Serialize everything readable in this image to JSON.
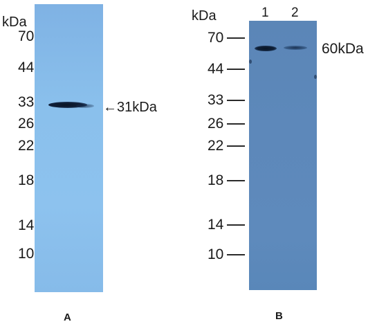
{
  "panel_a": {
    "unit_label": "kDa",
    "markers": [
      "70",
      "44",
      "33",
      "26",
      "22",
      "18",
      "14",
      "10"
    ],
    "band_annotation": "←31kDa",
    "panel_label": "A"
  },
  "panel_b": {
    "unit_label": "kDa",
    "lanes": [
      "1",
      "2"
    ],
    "markers": [
      "70",
      "44",
      "33",
      "26",
      "22",
      "18",
      "14",
      "10"
    ],
    "band_annotation": "60kDa",
    "panel_label": "B"
  },
  "colors": {
    "blot_a": "#8ac0ec",
    "blot_b": "#5d88ba",
    "band": "#0d1a2c"
  }
}
